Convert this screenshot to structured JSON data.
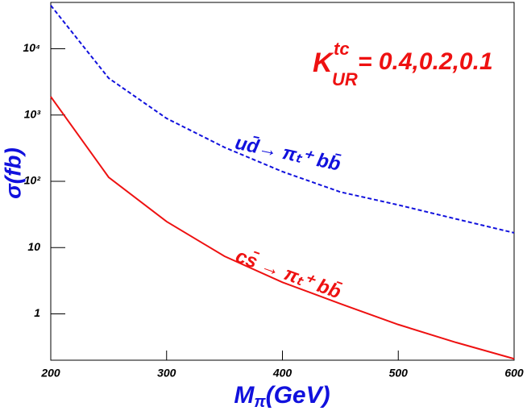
{
  "chart_data": {
    "type": "line",
    "x_label": {
      "main": "M",
      "sub": "π",
      "rest": "(GeV)"
    },
    "y_label": "σ(fb)",
    "annotation": {
      "base": "K",
      "sup": "tc",
      "sub": "UR",
      "text": "= 0.4,0.2,0.1",
      "color": "#ee1111"
    },
    "x": [
      200,
      250,
      300,
      350,
      400,
      450,
      500,
      550,
      600
    ],
    "series": [
      {
        "name": "ud̄→ πₜ⁺ bb̄",
        "color": "#1111dd",
        "dashed": true,
        "values": [
          45000,
          3600,
          890,
          325,
          140,
          69,
          44,
          27,
          16.7
        ]
      },
      {
        "name": "cs̄ → πₜ⁺ bb̄",
        "color": "#ee1111",
        "dashed": false,
        "values": [
          1890,
          115,
          24.7,
          7.4,
          3.0,
          1.42,
          0.69,
          0.37,
          0.21
        ]
      }
    ],
    "xlim": [
      200,
      600
    ],
    "xticks": [
      200,
      300,
      400,
      500,
      600
    ],
    "ylim": [
      0.2,
      50000
    ],
    "log_y": true,
    "yticks": [
      1,
      10,
      {
        "value": 100,
        "label": "10²"
      },
      {
        "value": 1000,
        "label": "10³"
      },
      {
        "value": 10000,
        "label": "10⁴"
      }
    ],
    "grid": false
  }
}
